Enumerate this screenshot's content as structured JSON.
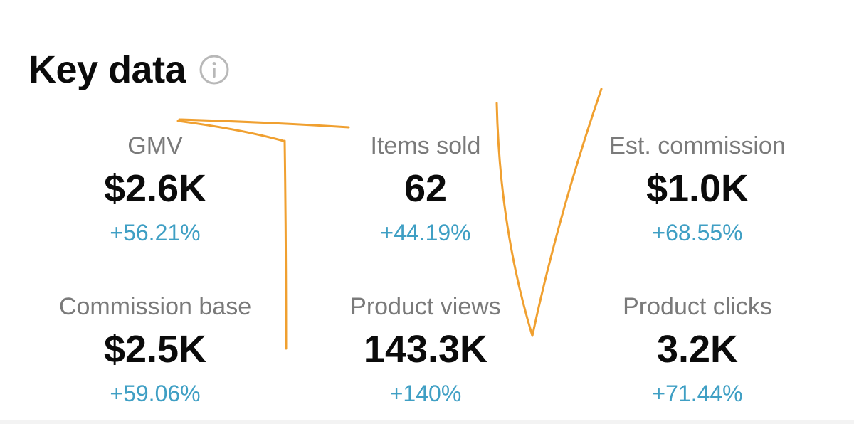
{
  "header": {
    "title": "Key data",
    "info_icon": "info-circle-icon"
  },
  "colors": {
    "change_positive": "#3f9fc4",
    "annotation_stroke": "#f0a030",
    "icon_gray": "#b8b8b8"
  },
  "metrics": [
    {
      "label": "GMV",
      "value": "$2.6K",
      "change": "+56.21%"
    },
    {
      "label": "Items sold",
      "value": "62",
      "change": "+44.19%"
    },
    {
      "label": "Est. commission",
      "value": "$1.0K",
      "change": "+68.55%"
    },
    {
      "label": "Commission base",
      "value": "$2.5K",
      "change": "+59.06%"
    },
    {
      "label": "Product views",
      "value": "143.3K",
      "change": "+140%"
    },
    {
      "label": "Product clicks",
      "value": "3.2K",
      "change": "+71.44%"
    }
  ]
}
